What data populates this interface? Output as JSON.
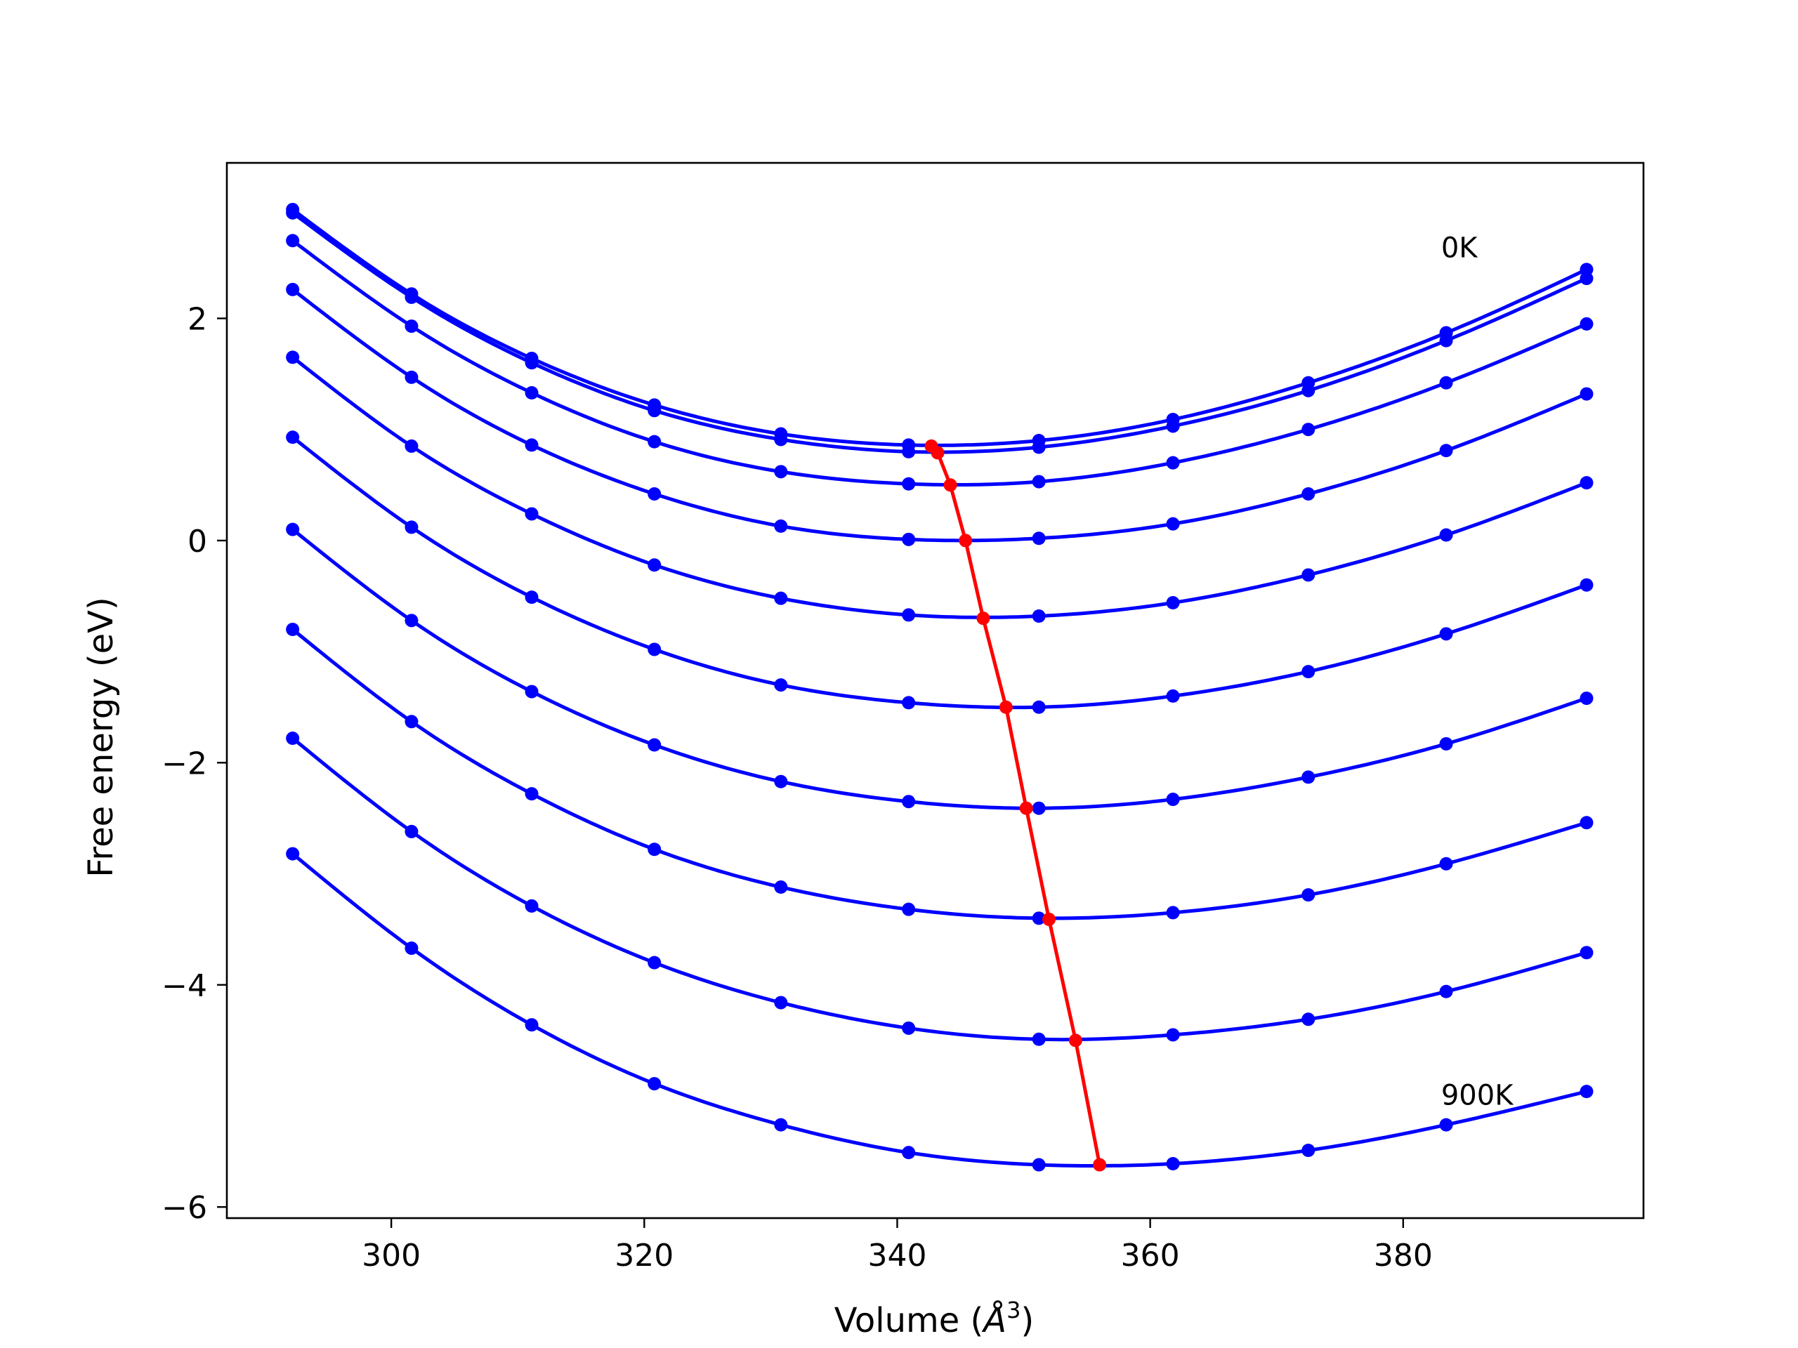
{
  "chart_data": {
    "type": "line",
    "xlabel_text": "Volume (",
    "xlabel_unit": "Å",
    "xlabel_exp": "3",
    "xlabel_close": ")",
    "ylabel": "Free energy (eV)",
    "xlim": [
      287,
      399
    ],
    "ylim": [
      -6.1,
      3.4
    ],
    "x_ticks": [
      300,
      320,
      340,
      360,
      380
    ],
    "y_ticks": [
      2,
      0,
      -2,
      -4,
      -6
    ],
    "x_tick_labels": [
      "300",
      "320",
      "340",
      "360",
      "380"
    ],
    "y_tick_labels": [
      "2",
      "0",
      "−2",
      "−4",
      "−6"
    ],
    "grid": false,
    "colors": {
      "curves": "#0000ff",
      "minima": "#ff0000"
    },
    "x": [
      292.2,
      301.6,
      311.1,
      320.8,
      330.8,
      340.9,
      351.2,
      361.8,
      372.5,
      383.4,
      394.5
    ],
    "series": [
      {
        "values": [
          2.98,
          2.22,
          1.64,
          1.22,
          0.96,
          0.86,
          0.9,
          1.09,
          1.42,
          1.87,
          2.44
        ]
      },
      {
        "values": [
          2.95,
          2.19,
          1.6,
          1.17,
          0.91,
          0.8,
          0.84,
          1.03,
          1.35,
          1.8,
          2.36
        ]
      },
      {
        "values": [
          2.7,
          1.93,
          1.33,
          0.89,
          0.62,
          0.51,
          0.53,
          0.7,
          1.0,
          1.42,
          1.95
        ]
      },
      {
        "values": [
          2.26,
          1.47,
          0.86,
          0.42,
          0.13,
          0.01,
          0.02,
          0.15,
          0.42,
          0.81,
          1.32
        ]
      },
      {
        "values": [
          1.65,
          0.85,
          0.24,
          -0.22,
          -0.52,
          -0.67,
          -0.68,
          -0.56,
          -0.31,
          0.05,
          0.52
        ]
      },
      {
        "values": [
          0.93,
          0.12,
          -0.51,
          -0.98,
          -1.3,
          -1.46,
          -1.5,
          -1.4,
          -1.18,
          -0.84,
          -0.4
        ]
      },
      {
        "values": [
          0.1,
          -0.72,
          -1.36,
          -1.84,
          -2.17,
          -2.35,
          -2.41,
          -2.33,
          -2.13,
          -1.83,
          -1.42
        ]
      },
      {
        "values": [
          -0.8,
          -1.63,
          -2.28,
          -2.78,
          -3.12,
          -3.32,
          -3.4,
          -3.35,
          -3.19,
          -2.91,
          -2.54
        ]
      },
      {
        "values": [
          -1.78,
          -2.62,
          -3.29,
          -3.8,
          -4.16,
          -4.39,
          -4.49,
          -4.45,
          -4.31,
          -4.06,
          -3.71
        ]
      },
      {
        "values": [
          -2.82,
          -3.67,
          -4.36,
          -4.89,
          -5.26,
          -5.51,
          -5.62,
          -5.61,
          -5.49,
          -5.26,
          -4.96
        ]
      }
    ],
    "minima": {
      "x": [
        342.7,
        343.2,
        344.2,
        345.4,
        346.8,
        348.6,
        350.2,
        352.0,
        354.1,
        356.0
      ],
      "y": [
        0.85,
        0.79,
        0.5,
        0.0,
        -0.7,
        -1.5,
        -2.41,
        -3.41,
        -4.5,
        -5.62
      ]
    },
    "annotations": [
      {
        "text": "0K",
        "x": 383.0,
        "y": 2.55
      },
      {
        "text": "900K",
        "x": 383.0,
        "y": -5.08
      }
    ]
  }
}
